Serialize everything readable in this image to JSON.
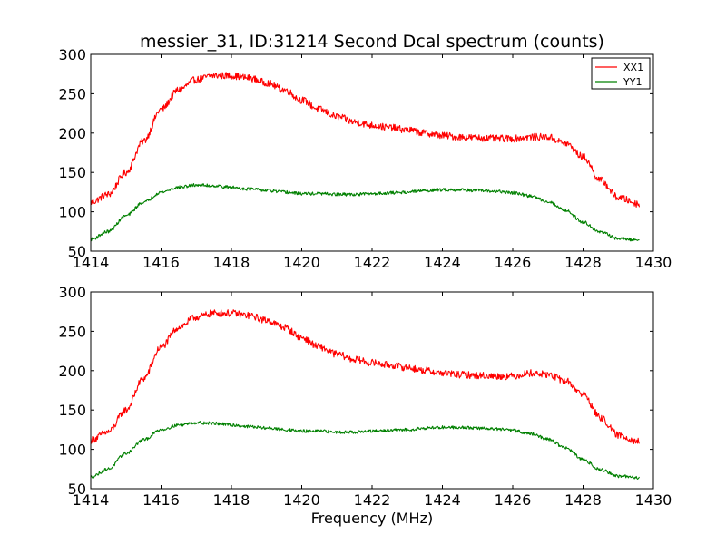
{
  "chart_data": {
    "type": "line",
    "title": "messier_31, ID:31214 Second Dcal spectrum (counts)",
    "xlabel": "Frequency (MHz)",
    "legend": {
      "placement": "top-right",
      "entries": [
        "XX1",
        "YY1"
      ]
    },
    "colors": {
      "XX1": "#ff0000",
      "YY1": "#008000",
      "axes": "#000000",
      "background": "#ffffff"
    },
    "panels": [
      {
        "name": "top",
        "xlim": [
          1414,
          1430
        ],
        "ylim": [
          50,
          300
        ],
        "xticks": [
          1414,
          1416,
          1418,
          1420,
          1422,
          1424,
          1426,
          1428,
          1430
        ],
        "xtick_labels": [
          "1414",
          "1416",
          "1418",
          "1420",
          "1422",
          "1424",
          "1426",
          "1428",
          "1430"
        ],
        "yticks": [
          50,
          100,
          150,
          200,
          250,
          300
        ],
        "ytick_labels": [
          "50",
          "100",
          "150",
          "200",
          "250",
          "300"
        ],
        "series": [
          {
            "name": "XX1",
            "x": [
              1414.0,
              1414.5,
              1415.0,
              1415.5,
              1416.0,
              1416.5,
              1417.0,
              1417.5,
              1418.0,
              1418.5,
              1419.0,
              1419.5,
              1420.0,
              1420.5,
              1421.0,
              1421.5,
              1422.0,
              1422.5,
              1423.0,
              1423.5,
              1424.0,
              1424.5,
              1425.0,
              1425.5,
              1426.0,
              1426.5,
              1427.0,
              1427.5,
              1428.0,
              1428.5,
              1429.0,
              1429.6
            ],
            "values": [
              112,
              122,
              150,
              190,
              230,
              255,
              268,
              273,
              273,
              270,
              264,
              255,
              242,
              230,
              221,
              214,
              210,
              207,
              204,
              200,
              197,
              195,
              194,
              193,
              193,
              195,
              195,
              187,
              170,
              140,
              118,
              110
            ]
          },
          {
            "name": "YY1",
            "x": [
              1414.0,
              1414.5,
              1415.0,
              1415.5,
              1416.0,
              1416.5,
              1417.0,
              1417.5,
              1418.0,
              1418.5,
              1419.0,
              1419.5,
              1420.0,
              1420.5,
              1421.0,
              1421.5,
              1422.0,
              1422.5,
              1423.0,
              1423.5,
              1424.0,
              1424.5,
              1425.0,
              1425.5,
              1426.0,
              1426.5,
              1427.0,
              1427.5,
              1428.0,
              1428.5,
              1429.0,
              1429.6
            ],
            "values": [
              65,
              75,
              95,
              112,
              125,
              131,
              134,
              133,
              131,
              129,
              127,
              125,
              123,
              123,
              122,
              122,
              123,
              124,
              125,
              127,
              128,
              128,
              127,
              126,
              124,
              120,
              113,
              102,
              87,
              74,
              66,
              64
            ]
          }
        ]
      },
      {
        "name": "bottom",
        "xlim": [
          1414,
          1430
        ],
        "ylim": [
          50,
          300
        ],
        "xticks": [
          1414,
          1416,
          1418,
          1420,
          1422,
          1424,
          1426,
          1428,
          1430
        ],
        "xtick_labels": [
          "1414",
          "1416",
          "1418",
          "1420",
          "1422",
          "1424",
          "1426",
          "1428",
          "1430"
        ],
        "yticks": [
          50,
          100,
          150,
          200,
          250,
          300
        ],
        "ytick_labels": [
          "50",
          "100",
          "150",
          "200",
          "250",
          "300"
        ],
        "series": [
          {
            "name": "XX1",
            "x": [
              1414.0,
              1414.5,
              1415.0,
              1415.5,
              1416.0,
              1416.5,
              1417.0,
              1417.5,
              1418.0,
              1418.5,
              1419.0,
              1419.5,
              1420.0,
              1420.5,
              1421.0,
              1421.5,
              1422.0,
              1422.5,
              1423.0,
              1423.5,
              1424.0,
              1424.5,
              1425.0,
              1425.5,
              1426.0,
              1426.5,
              1427.0,
              1427.5,
              1428.0,
              1428.5,
              1429.0,
              1429.6
            ],
            "values": [
              112,
              122,
              150,
              190,
              230,
              255,
              268,
              273,
              273,
              270,
              264,
              255,
              242,
              230,
              221,
              214,
              210,
              207,
              204,
              200,
              197,
              195,
              194,
              193,
              193,
              197,
              195,
              187,
              170,
              140,
              118,
              110
            ]
          },
          {
            "name": "YY1",
            "x": [
              1414.0,
              1414.5,
              1415.0,
              1415.5,
              1416.0,
              1416.5,
              1417.0,
              1417.5,
              1418.0,
              1418.5,
              1419.0,
              1419.5,
              1420.0,
              1420.5,
              1421.0,
              1421.5,
              1422.0,
              1422.5,
              1423.0,
              1423.5,
              1424.0,
              1424.5,
              1425.0,
              1425.5,
              1426.0,
              1426.5,
              1427.0,
              1427.5,
              1428.0,
              1428.5,
              1429.0,
              1429.6
            ],
            "values": [
              65,
              75,
              95,
              112,
              125,
              131,
              134,
              133,
              131,
              129,
              127,
              125,
              123,
              123,
              122,
              122,
              123,
              124,
              125,
              127,
              128,
              128,
              127,
              126,
              124,
              120,
              113,
              102,
              87,
              74,
              66,
              64
            ]
          }
        ]
      }
    ]
  }
}
